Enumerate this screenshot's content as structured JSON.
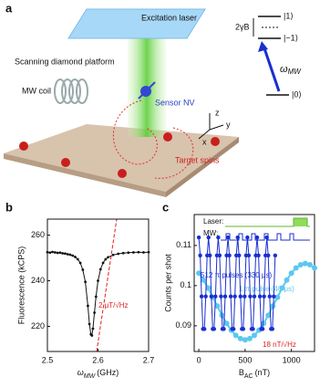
{
  "panel_a": {
    "label": "a",
    "excitation": "Excitation laser",
    "platform": "Scanning diamond platform",
    "coil": "MW coil",
    "sensor": "Sensor NV",
    "targets": "Target spins",
    "level_1": "|1⟩",
    "level_m1": "|−1⟩",
    "level_0": "|0⟩",
    "splitting": "2γB",
    "omega": "ω",
    "omega_sub": "MW",
    "axis_z": "z",
    "axis_y": "y",
    "axis_x": "x"
  },
  "chart_data": [
    {
      "type": "line",
      "label": "b",
      "xlabel": "ω",
      "xlabel_sub": "MW",
      "xlabel_unit": "(GHz)",
      "ylabel": "Fluorescence (kCPS)",
      "annotation": "2 μT/√Hz",
      "xlim": [
        2.5,
        2.7
      ],
      "xticks": [
        2.5,
        2.6,
        2.7
      ],
      "ylim": [
        209,
        267
      ],
      "yticks": [
        220,
        240,
        260
      ],
      "series": [
        {
          "color": "#111111",
          "x": [
            2.5,
            2.505,
            2.51,
            2.515,
            2.52,
            2.525,
            2.53,
            2.535,
            2.54,
            2.545,
            2.55,
            2.555,
            2.56,
            2.565,
            2.57,
            2.575,
            2.58,
            2.583,
            2.586,
            2.588,
            2.59,
            2.593,
            2.596,
            2.6,
            2.605,
            2.61,
            2.615,
            2.62,
            2.63,
            2.64,
            2.65,
            2.66,
            2.67,
            2.68,
            2.69,
            2.7
          ],
          "values": [
            252.5,
            252.3,
            252.6,
            252.4,
            252.2,
            252.3,
            252,
            251.9,
            251.6,
            251.4,
            251,
            250.4,
            249.4,
            247.8,
            244.8,
            239.5,
            229,
            221,
            216.5,
            216,
            219,
            226,
            233,
            240,
            245,
            247.8,
            249.4,
            250.3,
            251.3,
            251.8,
            252.1,
            252.3,
            252.4,
            252.5,
            252.4,
            252.5
          ]
        }
      ]
    },
    {
      "type": "line",
      "label": "c",
      "xlabel": "B",
      "xlabel_sub": "AC",
      "xlabel_unit": "(nT)",
      "ylabel": "Counts per shot",
      "annotation": "18 nT/√Hz",
      "inset_labels": [
        "Laser:",
        "MW:"
      ],
      "xlim": [
        -50,
        1250
      ],
      "xticks": [
        0,
        500,
        1000
      ],
      "ylim": [
        0.0836,
        0.1177
      ],
      "yticks": [
        0.09,
        0.1,
        0.11
      ],
      "series": [
        {
          "name": "1 π pulse (40 μs)",
          "color": "#5bc8f0",
          "x": [
            0,
            50,
            100,
            150,
            200,
            250,
            300,
            350,
            400,
            450,
            500,
            550,
            600,
            650,
            700,
            750,
            800,
            850,
            900,
            950,
            1000,
            1050,
            1100,
            1150,
            1200,
            1250
          ],
          "values": [
            0.1031,
            0.1014,
            0.0994,
            0.0971,
            0.0949,
            0.0926,
            0.0906,
            0.0889,
            0.0876,
            0.0868,
            0.0865,
            0.0868,
            0.0876,
            0.0889,
            0.0906,
            0.0926,
            0.0949,
            0.0971,
            0.0994,
            0.1014,
            0.1031,
            0.1044,
            0.1052,
            0.1055,
            0.1052,
            0.1044
          ]
        },
        {
          "name": "512 π pulses (330 μs)",
          "color": "#1a2fcf",
          "x": [
            0,
            15,
            30,
            45,
            60,
            75,
            90,
            105,
            120,
            135,
            150,
            165,
            180,
            195,
            210,
            225,
            240,
            255,
            270,
            285,
            300,
            315,
            330,
            345,
            360,
            375,
            390,
            405,
            420,
            435,
            450,
            465,
            480,
            495,
            510,
            525,
            540,
            555,
            570,
            585,
            600,
            615,
            630,
            645,
            660,
            675,
            690,
            705,
            720,
            735,
            750,
            765,
            780,
            795,
            810,
            825
          ],
          "values": [
            0.112,
            0.1075,
            0.0973,
            0.0892,
            0.0892,
            0.0973,
            0.1075,
            0.112,
            0.1075,
            0.0973,
            0.0892,
            0.0892,
            0.0973,
            0.1075,
            0.112,
            0.1075,
            0.0973,
            0.0892,
            0.0892,
            0.0973,
            0.1075,
            0.112,
            0.1075,
            0.0973,
            0.0892,
            0.0892,
            0.0973,
            0.1075,
            0.112,
            0.1075,
            0.0973,
            0.0892,
            0.0892,
            0.0973,
            0.1075,
            0.112,
            0.1075,
            0.0973,
            0.0892,
            0.0892,
            0.0973,
            0.1075,
            0.112,
            0.1075,
            0.0973,
            0.0892,
            0.0892,
            0.0973,
            0.1075,
            0.112,
            0.1075,
            0.0973,
            0.0892,
            0.0892,
            0.0973,
            0.1075
          ]
        }
      ]
    }
  ]
}
